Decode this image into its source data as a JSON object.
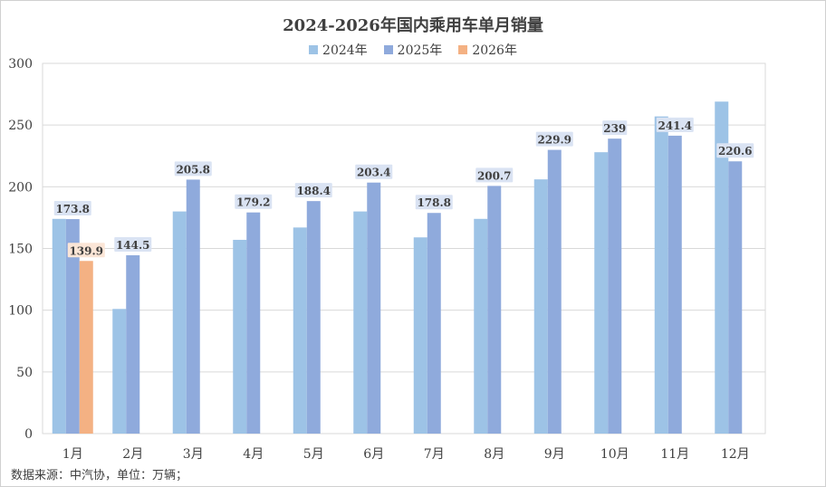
{
  "chart_data": {
    "type": "bar",
    "title": "2024-2026年国内乘用车单月销量",
    "categories": [
      "1月",
      "2月",
      "3月",
      "4月",
      "5月",
      "6月",
      "7月",
      "8月",
      "9月",
      "10月",
      "11月",
      "12月"
    ],
    "series": [
      {
        "name": "2024年",
        "color": "#9dc3e6",
        "values": [
          174,
          101,
          180,
          157,
          167,
          180,
          159,
          174,
          206,
          228,
          257,
          269
        ]
      },
      {
        "name": "2025年",
        "color": "#8faadc",
        "values": [
          173.8,
          144.5,
          205.8,
          179.2,
          188.4,
          203.4,
          178.8,
          200.7,
          229.9,
          239,
          241.4,
          220.6
        ],
        "labels": [
          "173.8",
          "144.5",
          "205.8",
          "179.2",
          "188.4",
          "203.4",
          "178.8",
          "200.7",
          "229.9",
          "239",
          "241.4",
          "220.6"
        ]
      },
      {
        "name": "2026年",
        "color": "#f4b183",
        "values": [
          139.9,
          null,
          null,
          null,
          null,
          null,
          null,
          null,
          null,
          null,
          null,
          null
        ],
        "labels": [
          "139.9"
        ]
      }
    ],
    "ylim": [
      0,
      300
    ],
    "yticks": [
      0,
      50,
      100,
      150,
      200,
      250,
      300
    ],
    "grid": true,
    "legend_position": "top"
  },
  "source_note": "数据来源：中汽协，单位：万辆；"
}
